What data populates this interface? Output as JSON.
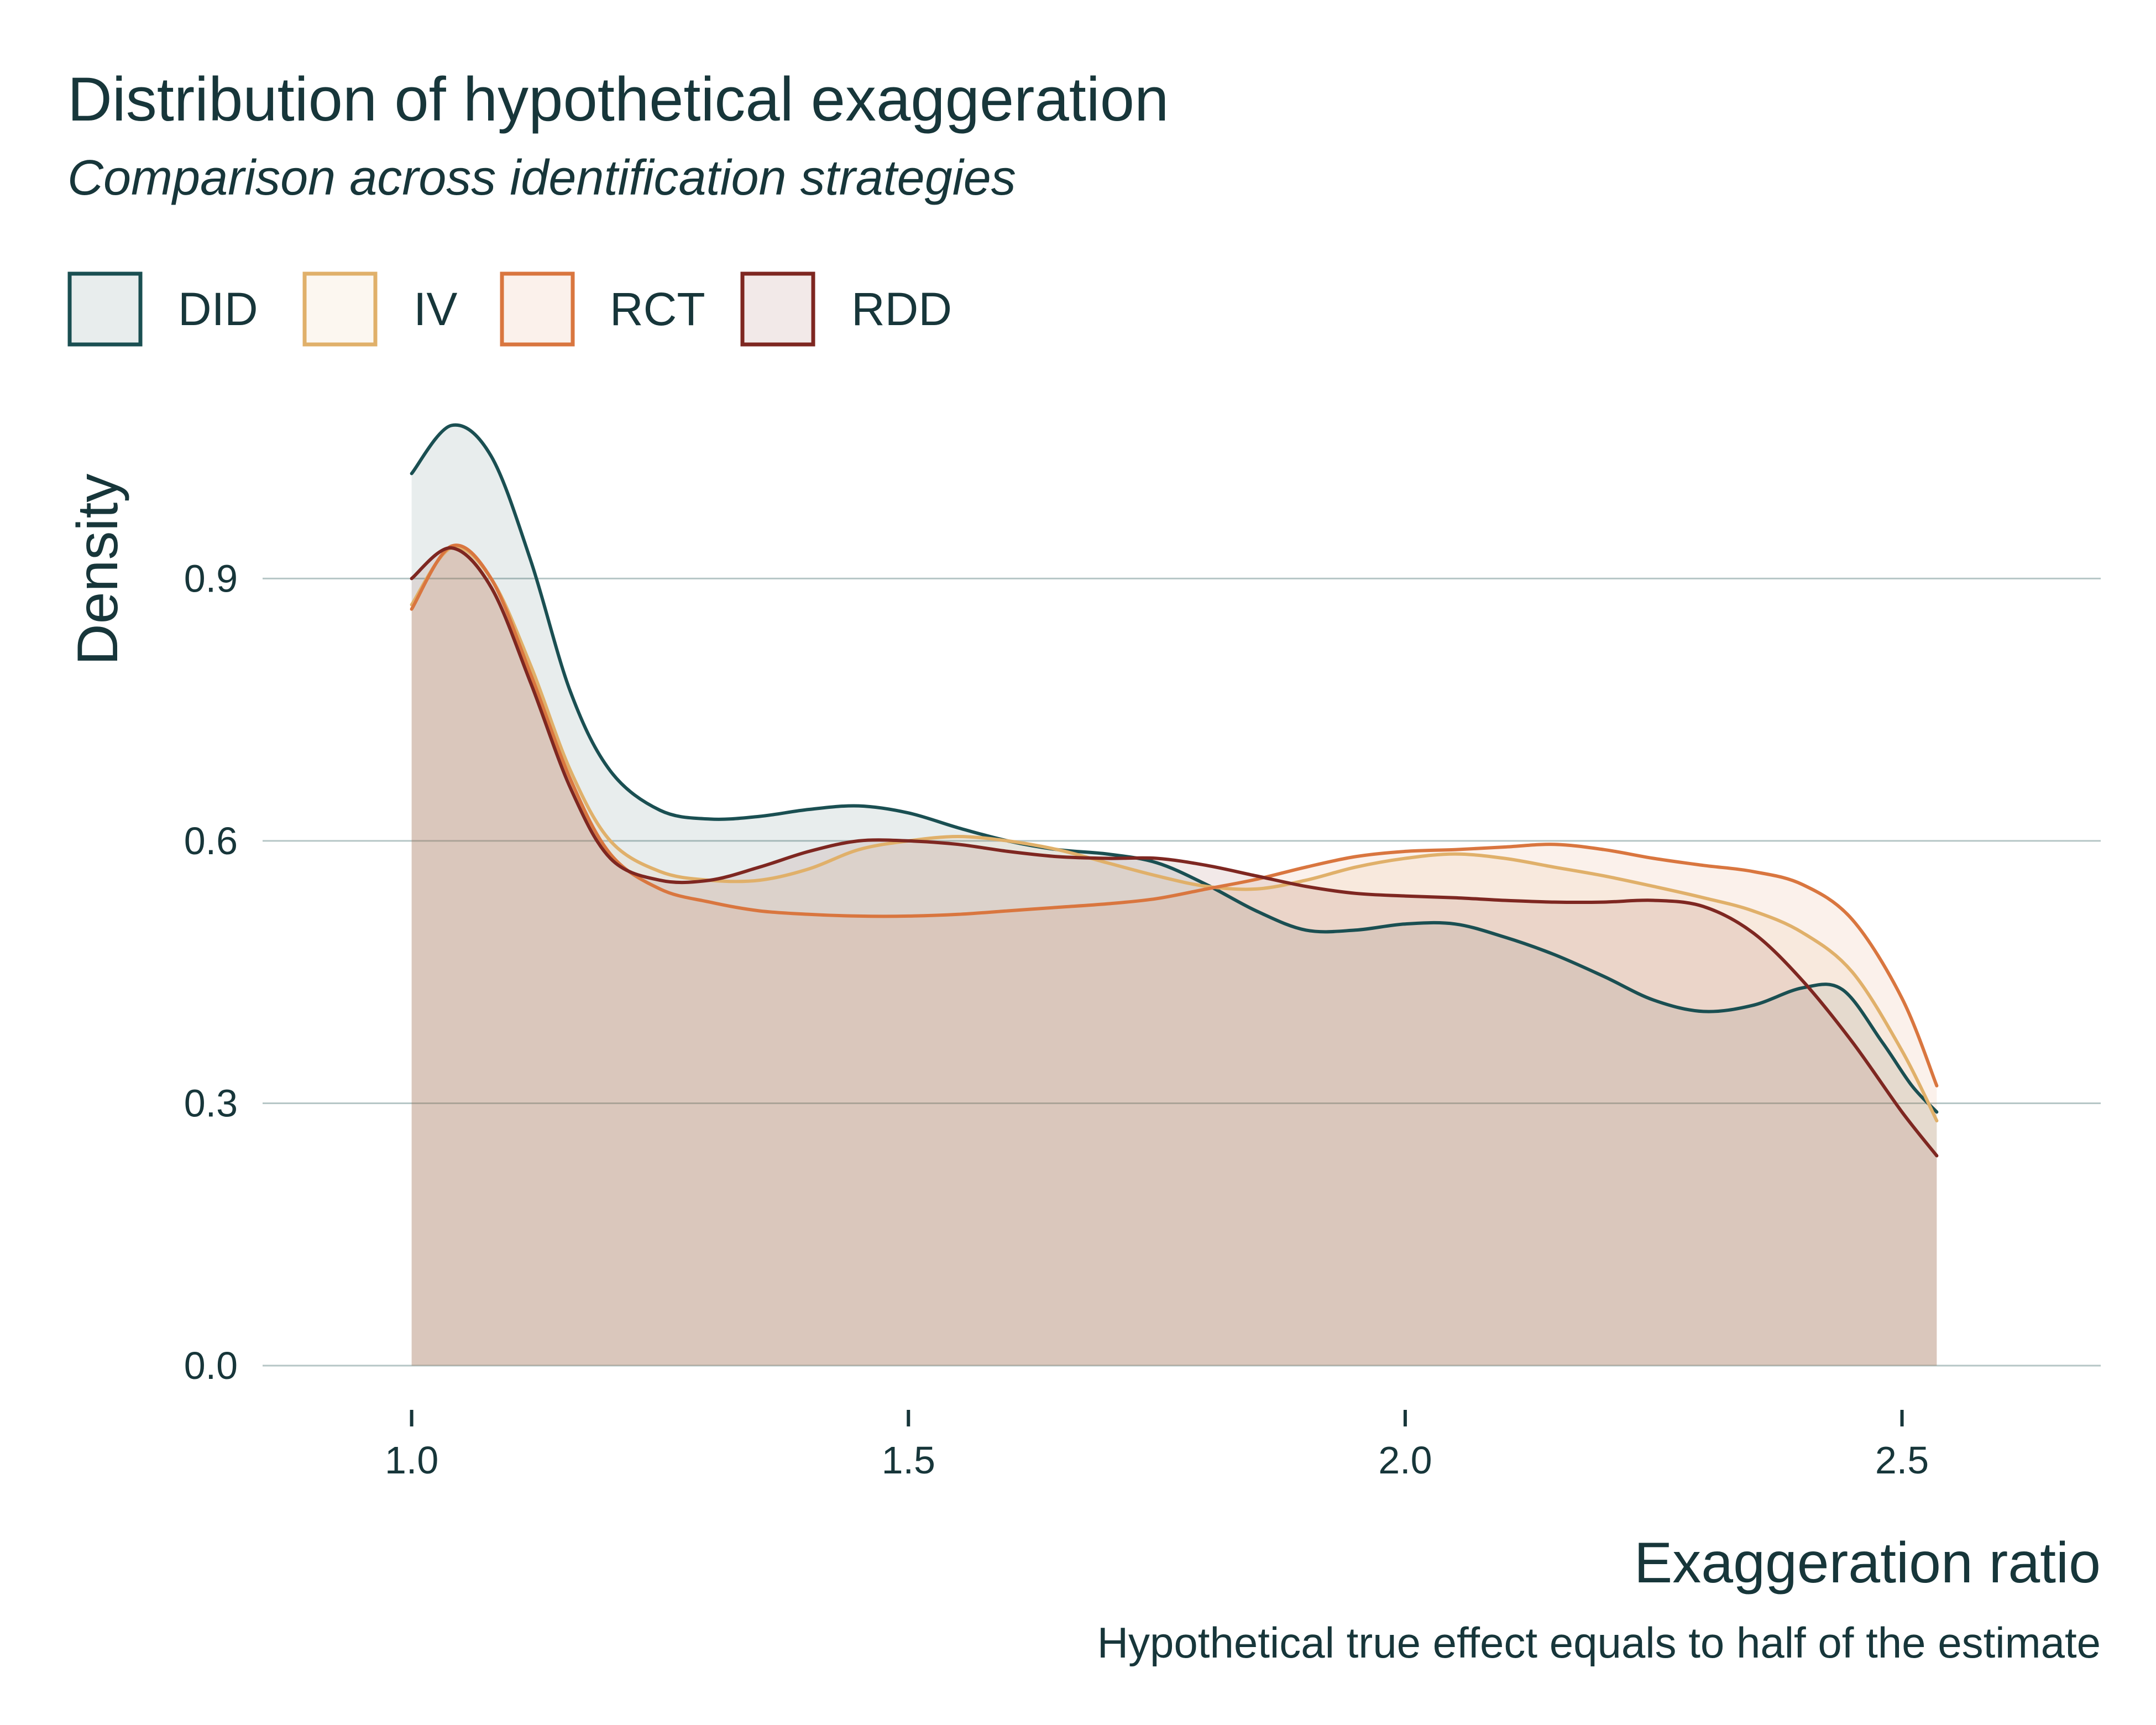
{
  "colors": {
    "DID": "#1a4f52",
    "IV": "#e0b06a",
    "RCT": "#d9763f",
    "RDD": "#7e2721",
    "text": "#17363a",
    "grid": "#b6c6c6"
  },
  "chart_data": {
    "type": "area",
    "title": "Distribution of hypothetical exaggeration",
    "subtitle": "Comparison across identification strategies",
    "xlabel": "Exaggeration ratio",
    "ylabel": "Density",
    "caption": "Hypothetical true effect equals to half of the estimate",
    "xlim": [
      0.85,
      2.7
    ],
    "ylim": [
      0,
      1.1
    ],
    "x_ticks": [
      1.0,
      1.5,
      2.0,
      2.5
    ],
    "x_tick_labels": [
      "1.0",
      "1.5",
      "2.0",
      "2.5"
    ],
    "y_ticks": [
      0.0,
      0.3,
      0.6,
      0.9
    ],
    "y_tick_labels": [
      "0.0",
      "0.3",
      "0.6",
      "0.9"
    ],
    "grid": "horizontal",
    "legend_position": "top-left",
    "series": [
      {
        "name": "DID",
        "points": [
          [
            1.0,
            1.02
          ],
          [
            1.04,
            1.075
          ],
          [
            1.08,
            1.04
          ],
          [
            1.12,
            0.92
          ],
          [
            1.16,
            0.77
          ],
          [
            1.2,
            0.68
          ],
          [
            1.25,
            0.635
          ],
          [
            1.3,
            0.625
          ],
          [
            1.35,
            0.628
          ],
          [
            1.4,
            0.636
          ],
          [
            1.45,
            0.64
          ],
          [
            1.5,
            0.632
          ],
          [
            1.55,
            0.615
          ],
          [
            1.6,
            0.6
          ],
          [
            1.65,
            0.59
          ],
          [
            1.7,
            0.585
          ],
          [
            1.75,
            0.575
          ],
          [
            1.8,
            0.55
          ],
          [
            1.85,
            0.52
          ],
          [
            1.9,
            0.498
          ],
          [
            1.95,
            0.498
          ],
          [
            2.0,
            0.505
          ],
          [
            2.05,
            0.505
          ],
          [
            2.1,
            0.49
          ],
          [
            2.15,
            0.47
          ],
          [
            2.2,
            0.445
          ],
          [
            2.25,
            0.418
          ],
          [
            2.3,
            0.405
          ],
          [
            2.35,
            0.412
          ],
          [
            2.4,
            0.432
          ],
          [
            2.44,
            0.43
          ],
          [
            2.48,
            0.37
          ],
          [
            2.51,
            0.32
          ],
          [
            2.535,
            0.29
          ]
        ]
      },
      {
        "name": "IV",
        "points": [
          [
            1.0,
            0.87
          ],
          [
            1.04,
            0.935
          ],
          [
            1.08,
            0.9
          ],
          [
            1.12,
            0.8
          ],
          [
            1.16,
            0.68
          ],
          [
            1.2,
            0.6
          ],
          [
            1.25,
            0.565
          ],
          [
            1.3,
            0.555
          ],
          [
            1.35,
            0.555
          ],
          [
            1.4,
            0.568
          ],
          [
            1.45,
            0.59
          ],
          [
            1.5,
            0.6
          ],
          [
            1.55,
            0.605
          ],
          [
            1.6,
            0.6
          ],
          [
            1.65,
            0.59
          ],
          [
            1.7,
            0.575
          ],
          [
            1.75,
            0.56
          ],
          [
            1.8,
            0.548
          ],
          [
            1.85,
            0.545
          ],
          [
            1.9,
            0.555
          ],
          [
            1.95,
            0.57
          ],
          [
            2.0,
            0.58
          ],
          [
            2.05,
            0.585
          ],
          [
            2.1,
            0.58
          ],
          [
            2.15,
            0.57
          ],
          [
            2.2,
            0.56
          ],
          [
            2.25,
            0.548
          ],
          [
            2.3,
            0.535
          ],
          [
            2.35,
            0.52
          ],
          [
            2.4,
            0.495
          ],
          [
            2.45,
            0.45
          ],
          [
            2.5,
            0.36
          ],
          [
            2.535,
            0.28
          ]
        ]
      },
      {
        "name": "RCT",
        "points": [
          [
            1.0,
            0.865
          ],
          [
            1.04,
            0.937
          ],
          [
            1.08,
            0.9
          ],
          [
            1.12,
            0.79
          ],
          [
            1.16,
            0.67
          ],
          [
            1.2,
            0.585
          ],
          [
            1.25,
            0.545
          ],
          [
            1.3,
            0.53
          ],
          [
            1.35,
            0.52
          ],
          [
            1.4,
            0.516
          ],
          [
            1.45,
            0.514
          ],
          [
            1.5,
            0.514
          ],
          [
            1.55,
            0.516
          ],
          [
            1.6,
            0.52
          ],
          [
            1.65,
            0.524
          ],
          [
            1.7,
            0.528
          ],
          [
            1.75,
            0.534
          ],
          [
            1.8,
            0.545
          ],
          [
            1.85,
            0.556
          ],
          [
            1.9,
            0.57
          ],
          [
            1.95,
            0.582
          ],
          [
            2.0,
            0.588
          ],
          [
            2.05,
            0.59
          ],
          [
            2.1,
            0.593
          ],
          [
            2.15,
            0.596
          ],
          [
            2.2,
            0.59
          ],
          [
            2.25,
            0.58
          ],
          [
            2.3,
            0.572
          ],
          [
            2.35,
            0.565
          ],
          [
            2.4,
            0.55
          ],
          [
            2.45,
            0.51
          ],
          [
            2.5,
            0.42
          ],
          [
            2.535,
            0.32
          ]
        ]
      },
      {
        "name": "RDD",
        "points": [
          [
            1.0,
            0.9
          ],
          [
            1.04,
            0.935
          ],
          [
            1.08,
            0.89
          ],
          [
            1.12,
            0.78
          ],
          [
            1.16,
            0.66
          ],
          [
            1.2,
            0.58
          ],
          [
            1.25,
            0.555
          ],
          [
            1.3,
            0.555
          ],
          [
            1.35,
            0.57
          ],
          [
            1.4,
            0.588
          ],
          [
            1.45,
            0.6
          ],
          [
            1.5,
            0.6
          ],
          [
            1.55,
            0.596
          ],
          [
            1.6,
            0.588
          ],
          [
            1.65,
            0.582
          ],
          [
            1.7,
            0.58
          ],
          [
            1.75,
            0.58
          ],
          [
            1.8,
            0.572
          ],
          [
            1.85,
            0.56
          ],
          [
            1.9,
            0.548
          ],
          [
            1.95,
            0.54
          ],
          [
            2.0,
            0.537
          ],
          [
            2.05,
            0.535
          ],
          [
            2.1,
            0.532
          ],
          [
            2.15,
            0.53
          ],
          [
            2.2,
            0.53
          ],
          [
            2.25,
            0.532
          ],
          [
            2.3,
            0.525
          ],
          [
            2.35,
            0.495
          ],
          [
            2.4,
            0.44
          ],
          [
            2.45,
            0.37
          ],
          [
            2.5,
            0.29
          ],
          [
            2.535,
            0.24
          ]
        ]
      }
    ]
  }
}
